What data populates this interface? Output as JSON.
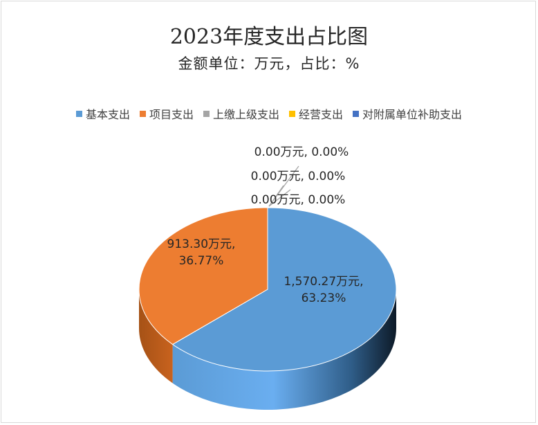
{
  "chart_data": {
    "type": "pie",
    "title": "2023年度支出占比图",
    "subtitle": "金额单位：万元，占比：%",
    "legend_position": "top",
    "series": [
      {
        "name": "基本支出",
        "value": 1570.27,
        "label_value": "1,570.27万元,",
        "label_pct": "63.23%",
        "color": "#5b9bd5"
      },
      {
        "name": "项目支出",
        "value": 913.3,
        "label_value": "913.30万元,",
        "label_pct": "36.77%",
        "color": "#ed7d31"
      },
      {
        "name": "上缴上级支出",
        "value": 0.0,
        "label": "0.00万元, 0.00%",
        "color": "#a5a5a5"
      },
      {
        "name": "经营支出",
        "value": 0.0,
        "label": "0.00万元, 0.00%",
        "color": "#ffc000"
      },
      {
        "name": "对附属单位补助支出",
        "value": 0.0,
        "label": "0.00万元, 0.00%",
        "color": "#4472c4"
      }
    ]
  }
}
